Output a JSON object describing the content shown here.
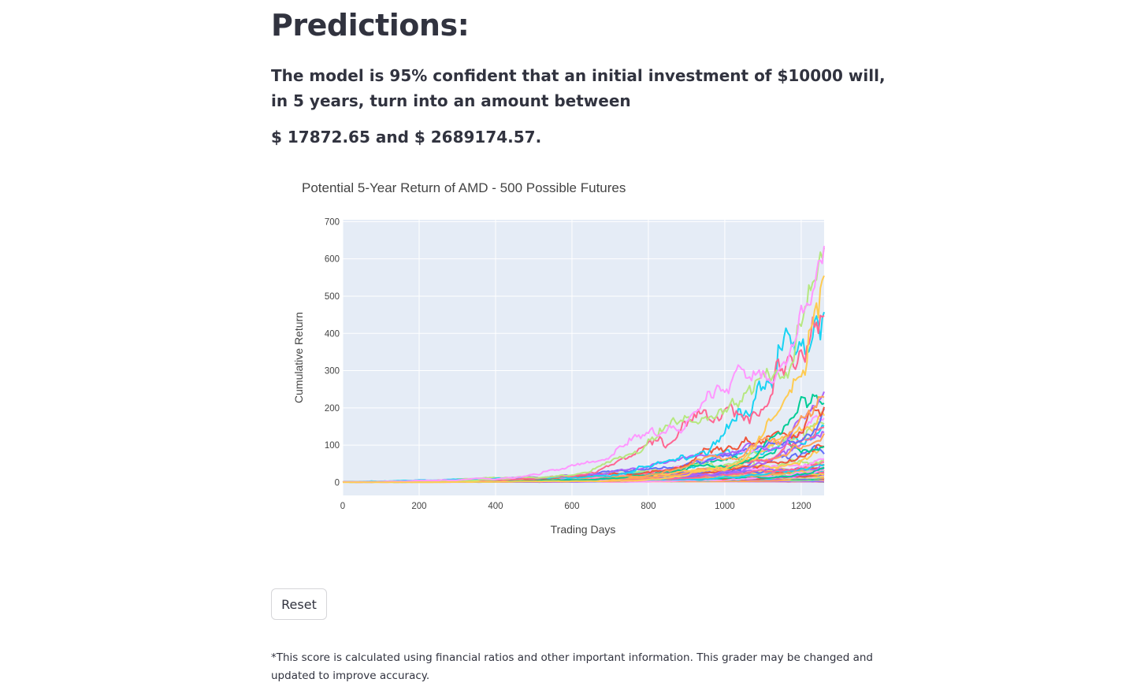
{
  "page": {
    "title": "Predictions:",
    "confidence_text": "The model is 95% confident that an initial investment of $10000 will, in 5 years, turn into an amount between",
    "range_text": "$ 17872.65 and $ 2689174.57.",
    "reset_label": "Reset",
    "footnote": "*This score is calculated using financial ratios and other important information. This grader may be changed and updated to improve accuracy."
  },
  "chart_data": {
    "type": "line",
    "title": "Potential 5-Year Return of AMD - 500 Possible Futures",
    "xlabel": "Trading Days",
    "ylabel": "Cumulative Return",
    "xlim": [
      0,
      1260
    ],
    "ylim": [
      -35,
      705
    ],
    "xticks": [
      0,
      200,
      400,
      600,
      800,
      1000,
      1200
    ],
    "yticks": [
      0,
      100,
      200,
      300,
      400,
      500,
      600,
      700
    ],
    "num_simulations": 500,
    "rendered_series_sample": 60,
    "grid": true,
    "legend": "none",
    "series_colors": [
      "#636efa",
      "#ef553b",
      "#00cc96",
      "#ab63fa",
      "#ffa15a",
      "#19d3f3",
      "#ff6692",
      "#b6e880",
      "#ff97ff",
      "#fecb52"
    ],
    "background": "#e5ecf6",
    "gridcolor": "#ffffff"
  }
}
